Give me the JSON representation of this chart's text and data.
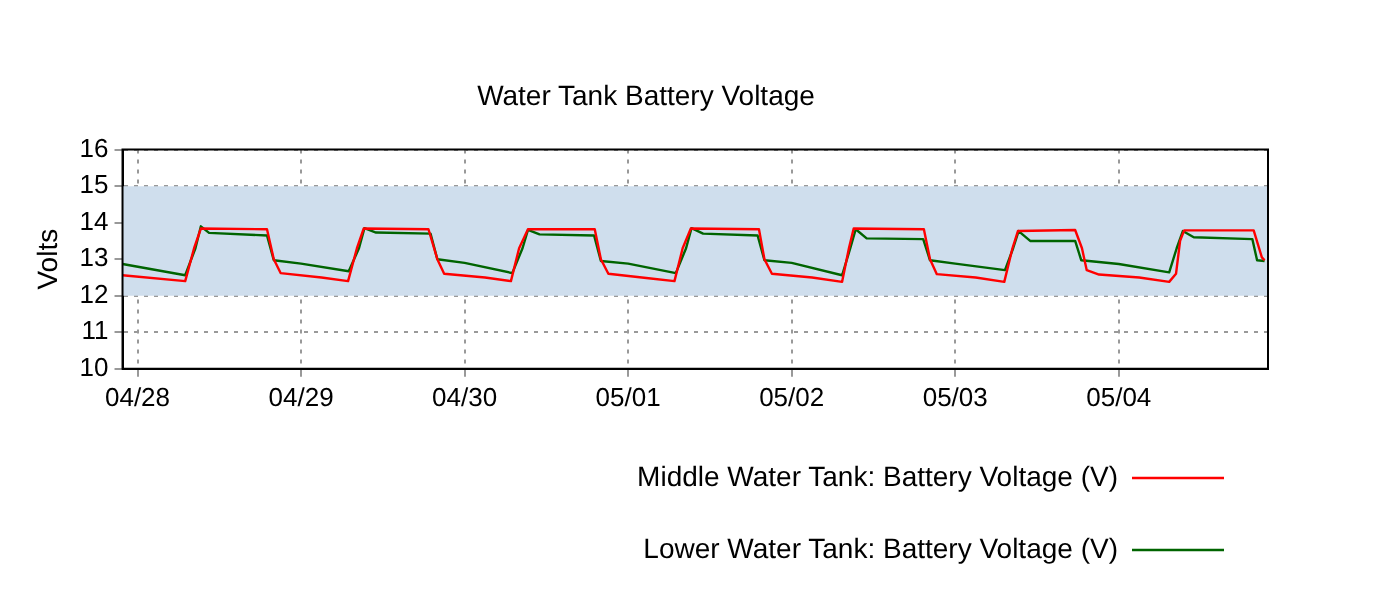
{
  "chart_data": {
    "type": "line",
    "title": "Water Tank Battery Voltage",
    "ylabel": "Volts",
    "xlim": [
      "--04-27T21:48",
      "--05-04T21:54"
    ],
    "xticks": [
      {
        "value": "--04-28",
        "label": "04/28"
      },
      {
        "value": "--04-29",
        "label": "04/29"
      },
      {
        "value": "--04-30",
        "label": "04/30"
      },
      {
        "value": "--05-01",
        "label": "05/01"
      },
      {
        "value": "--05-02",
        "label": "05/02"
      },
      {
        "value": "--05-03",
        "label": "05/03"
      },
      {
        "value": "--05-04",
        "label": "05/04"
      }
    ],
    "ylim": [
      10,
      16
    ],
    "yticks": [
      10,
      11,
      12,
      13,
      14,
      15,
      16
    ],
    "grid": true,
    "legend": "bottom",
    "marker": "none",
    "line_style": "solid",
    "bands": [
      {
        "axis": "y",
        "from": 12,
        "to": 15,
        "color": "#cfdeed"
      }
    ],
    "series": [
      {
        "name": "Middle Water Tank: Battery Voltage (V)",
        "color": "#ff0000",
        "x": [
          "--04-27T21:48",
          "--04-28T07:00",
          "--04-28T08:18",
          "--04-28T09:18",
          "--04-28T19:00",
          "--04-28T20:00",
          "--04-28T21:00",
          "--04-29T03:00",
          "--04-29T06:54",
          "--04-29T08:12",
          "--04-29T09:12",
          "--04-29T18:42",
          "--04-29T20:00",
          "--04-29T21:00",
          "--04-30T03:00",
          "--04-30T06:48",
          "--04-30T08:00",
          "--04-30T09:18",
          "--04-30T19:06",
          "--04-30T20:00",
          "--04-30T21:06",
          "--05-01T03:00",
          "--05-01T06:48",
          "--05-01T08:00",
          "--05-01T09:12",
          "--05-01T19:12",
          "--05-01T20:00",
          "--05-01T21:06",
          "--05-02T03:00",
          "--05-02T07:24",
          "--05-02T08:24",
          "--05-02T09:06",
          "--05-02T19:24",
          "--05-02T20:18",
          "--05-02T21:18",
          "--05-03T03:00",
          "--05-03T07:12",
          "--05-03T08:24",
          "--05-03T09:12",
          "--05-03T17:36",
          "--05-03T18:36",
          "--05-03T19:18",
          "--05-03T21:06",
          "--05-04T03:00",
          "--05-04T07:24",
          "--05-04T08:24",
          "--05-04T09:00",
          "--05-04T09:36",
          "--05-04T19:48",
          "--05-04T21:00",
          "--05-04T21:24"
        ],
        "values": [
          12.56,
          12.4,
          13.3,
          13.84,
          13.82,
          13.0,
          12.62,
          12.5,
          12.4,
          13.3,
          13.84,
          13.82,
          13.0,
          12.6,
          12.5,
          12.4,
          13.3,
          13.82,
          13.82,
          13.0,
          12.6,
          12.48,
          12.4,
          13.3,
          13.84,
          13.82,
          13.0,
          12.6,
          12.5,
          12.38,
          13.3,
          13.84,
          13.82,
          13.0,
          12.59,
          12.5,
          12.38,
          13.3,
          13.77,
          13.8,
          13.3,
          12.7,
          12.58,
          12.5,
          12.38,
          12.6,
          13.5,
          13.79,
          13.79,
          13.05,
          12.97
        ]
      },
      {
        "name": "Lower Water Tank: Battery Voltage (V)",
        "color": "#006400",
        "x": [
          "--04-27T21:48",
          "--04-28T07:00",
          "--04-28T08:30",
          "--04-28T09:18",
          "--04-28T10:30",
          "--04-28T19:00",
          "--04-28T20:00",
          "--04-29T00:00",
          "--04-29T07:00",
          "--04-29T08:30",
          "--04-29T09:18",
          "--04-29T11:00",
          "--04-29T19:00",
          "--04-29T20:00",
          "--04-30T00:00",
          "--04-30T07:00",
          "--04-30T08:30",
          "--04-30T09:18",
          "--04-30T11:00",
          "--04-30T19:00",
          "--04-30T20:00",
          "--05-01T00:00",
          "--05-01T07:00",
          "--05-01T08:30",
          "--05-01T09:18",
          "--05-01T11:00",
          "--05-01T19:00",
          "--05-01T20:00",
          "--05-02T00:00",
          "--05-02T07:24",
          "--05-02T08:36",
          "--05-02T09:24",
          "--05-02T11:00",
          "--05-02T19:18",
          "--05-02T20:18",
          "--05-03T00:00",
          "--05-03T07:18",
          "--05-03T08:30",
          "--05-03T09:18",
          "--05-03T11:00",
          "--05-03T17:36",
          "--05-03T18:30",
          "--05-04T00:00",
          "--05-04T07:24",
          "--05-04T08:30",
          "--05-04T09:24",
          "--05-04T11:00",
          "--05-04T19:36",
          "--05-04T20:18",
          "--05-04T21:24"
        ],
        "values": [
          12.87,
          12.56,
          13.3,
          13.9,
          13.72,
          13.65,
          12.97,
          12.88,
          12.67,
          13.3,
          13.85,
          13.73,
          13.7,
          13.0,
          12.9,
          12.62,
          13.3,
          13.8,
          13.68,
          13.65,
          12.95,
          12.88,
          12.62,
          13.3,
          13.85,
          13.7,
          13.65,
          12.97,
          12.9,
          12.56,
          13.3,
          13.82,
          13.57,
          13.55,
          12.97,
          12.88,
          12.7,
          13.3,
          13.77,
          13.5,
          13.5,
          12.97,
          12.87,
          12.64,
          13.3,
          13.77,
          13.6,
          13.55,
          12.97,
          12.95
        ]
      }
    ]
  }
}
